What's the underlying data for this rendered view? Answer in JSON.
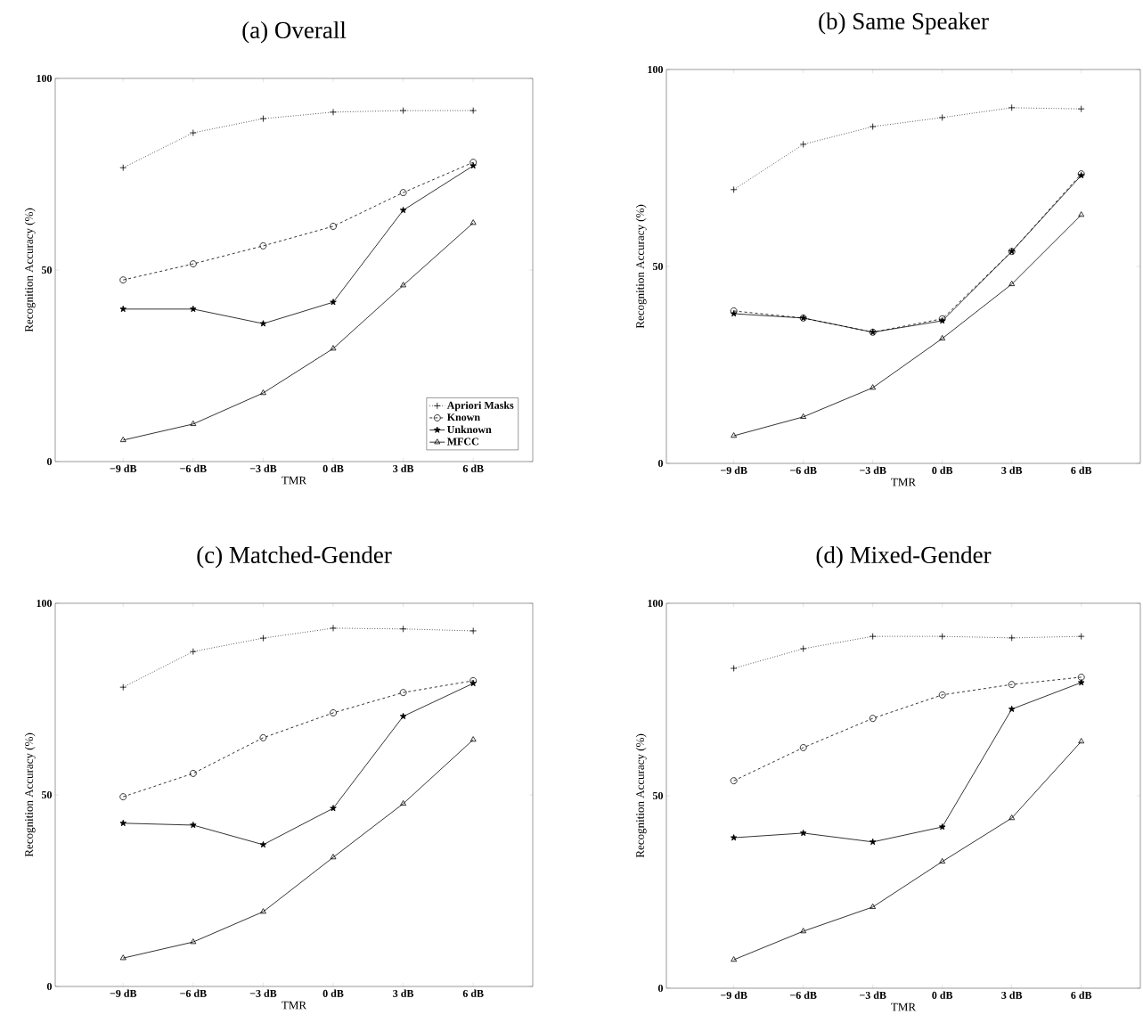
{
  "chart_data": [
    {
      "type": "line",
      "title": "(a) Overall",
      "xlabel": "TMR",
      "ylabel": "Recognition Accuracy (%)",
      "categories": [
        "−9 dB",
        "−6 dB",
        "−3 dB",
        "0 dB",
        "3 dB",
        "6 dB"
      ],
      "ylim": [
        0,
        100
      ],
      "yticks": [
        0,
        50,
        100
      ],
      "legend": "bottom right",
      "series": [
        {
          "name": "Apriori Masks",
          "color": "#000000",
          "marker": "cross",
          "line_style": "dotted",
          "values": [
            76.7,
            85.8,
            89.5,
            91.2,
            91.6,
            91.6
          ]
        },
        {
          "name": "Known",
          "color": "#000000",
          "marker": "circle",
          "line_style": "dashed",
          "values": [
            47.4,
            51.6,
            56.3,
            61.4,
            70.2,
            78.1
          ]
        },
        {
          "name": "Unknown",
          "color": "#000000",
          "marker": "star",
          "line_style": "solid",
          "values": [
            39.8,
            39.8,
            36.0,
            41.6,
            65.6,
            77.2
          ]
        },
        {
          "name": "MFCC",
          "color": "#000000",
          "marker": "triangle",
          "line_style": "solid",
          "values": [
            5.6,
            9.8,
            17.9,
            29.5,
            46.0,
            62.3
          ]
        }
      ]
    },
    {
      "type": "line",
      "title": "(b) Same Speaker",
      "xlabel": "TMR",
      "ylabel": "Recognition Accuracy (%)",
      "categories": [
        "−9 dB",
        "−6 dB",
        "−3 dB",
        "0 dB",
        "3 dB",
        "6 dB"
      ],
      "ylim": [
        0,
        100
      ],
      "yticks": [
        0,
        50,
        100
      ],
      "series": [
        {
          "color": "#000000",
          "marker": "cross",
          "line_style": "dotted",
          "values": [
            69.5,
            81.0,
            85.5,
            87.8,
            90.3,
            90.0
          ]
        },
        {
          "color": "#000000",
          "marker": "circle",
          "line_style": "dashed",
          "values": [
            38.7,
            36.9,
            33.3,
            36.7,
            53.8,
            73.5
          ]
        },
        {
          "color": "#000000",
          "marker": "star",
          "line_style": "solid",
          "values": [
            38.0,
            36.9,
            33.3,
            36.2,
            53.8,
            73.1
          ]
        },
        {
          "color": "#000000",
          "marker": "triangle",
          "line_style": "solid",
          "values": [
            7.0,
            11.8,
            19.2,
            31.7,
            45.5,
            63.1
          ]
        }
      ]
    },
    {
      "type": "line",
      "title": "(c) Matched-Gender",
      "xlabel": "TMR",
      "ylabel": "Recognition Accuracy (%)",
      "categories": [
        "−9 dB",
        "−6 dB",
        "−3 dB",
        "0 dB",
        "3 dB",
        "6 dB"
      ],
      "ylim": [
        0,
        100
      ],
      "yticks": [
        0,
        50,
        100
      ],
      "series": [
        {
          "color": "#000000",
          "marker": "cross",
          "line_style": "dotted",
          "values": [
            78.1,
            87.4,
            90.9,
            93.5,
            93.3,
            92.8
          ]
        },
        {
          "color": "#000000",
          "marker": "circle",
          "line_style": "dashed",
          "values": [
            49.5,
            55.6,
            64.9,
            71.4,
            76.7,
            79.8
          ]
        },
        {
          "color": "#000000",
          "marker": "star",
          "line_style": "solid",
          "values": [
            42.6,
            42.1,
            37.0,
            46.5,
            70.5,
            79.1
          ]
        },
        {
          "color": "#000000",
          "marker": "triangle",
          "line_style": "solid",
          "values": [
            7.4,
            11.6,
            19.5,
            33.7,
            47.7,
            64.4
          ]
        }
      ]
    },
    {
      "type": "line",
      "title": "(d) Mixed-Gender",
      "xlabel": "TMR",
      "ylabel": "Recognition Accuracy (%)",
      "categories": [
        "−9 dB",
        "−6 dB",
        "−3 dB",
        "0 dB",
        "3 dB",
        "6 dB"
      ],
      "ylim": [
        0,
        100
      ],
      "yticks": [
        0,
        50,
        100
      ],
      "series": [
        {
          "color": "#000000",
          "marker": "cross",
          "line_style": "dotted",
          "values": [
            83.1,
            88.2,
            91.4,
            91.4,
            91.0,
            91.4
          ]
        },
        {
          "color": "#000000",
          "marker": "circle",
          "line_style": "dashed",
          "values": [
            53.9,
            62.5,
            70.1,
            76.2,
            78.9,
            80.8
          ]
        },
        {
          "color": "#000000",
          "marker": "star",
          "line_style": "solid",
          "values": [
            39.1,
            40.3,
            38.0,
            41.9,
            72.5,
            79.4
          ]
        },
        {
          "color": "#000000",
          "marker": "triangle",
          "line_style": "solid",
          "values": [
            7.4,
            14.8,
            21.1,
            32.9,
            44.2,
            64.1
          ]
        }
      ]
    }
  ]
}
